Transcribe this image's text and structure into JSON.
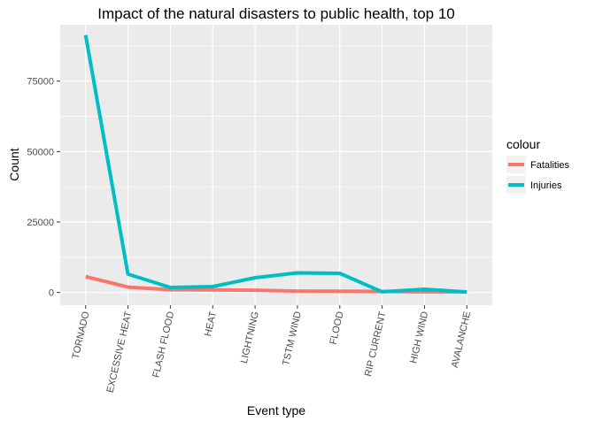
{
  "chart_data": {
    "type": "line",
    "title": "Impact of the natural disasters to public health, top 10",
    "xlabel": "Event type",
    "ylabel": "Count",
    "categories": [
      "TORNADO",
      "EXCESSIVE HEAT",
      "FLASH FLOOD",
      "HEAT",
      "LIGHTNING",
      "TSTM WIND",
      "FLOOD",
      "RIP CURRENT",
      "HIGH WIND",
      "AVALANCHE"
    ],
    "y_ticks": [
      0,
      25000,
      50000,
      75000
    ],
    "y_tick_labels": [
      "0",
      "25000",
      "50000",
      "75000"
    ],
    "ylim": [
      -4500,
      95000
    ],
    "grid": true,
    "legend": {
      "title": "colour",
      "placement": "right"
    },
    "series": [
      {
        "name": "Fatalities",
        "color": "#F8766D",
        "values": [
          5633,
          1903,
          978,
          937,
          816,
          504,
          470,
          368,
          248,
          224
        ]
      },
      {
        "name": "Injuries",
        "color": "#00BFC4",
        "values": [
          91346,
          6525,
          1777,
          2100,
          5230,
          6957,
          6789,
          232,
          1137,
          170
        ]
      }
    ]
  }
}
